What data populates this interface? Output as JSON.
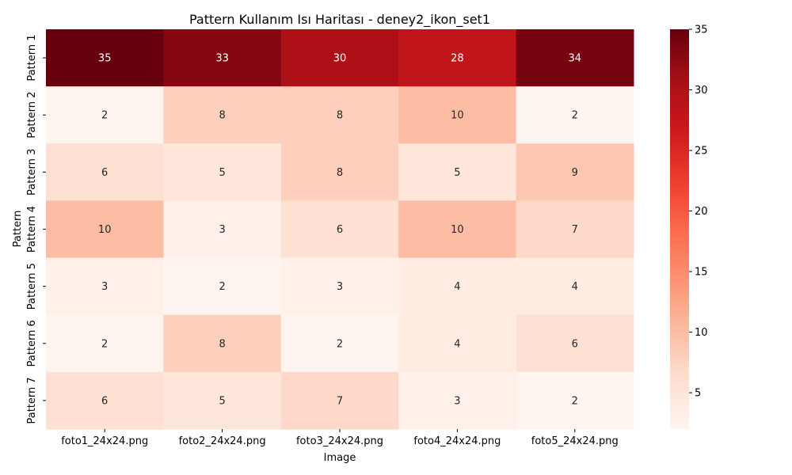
{
  "chart_data": {
    "type": "heatmap",
    "title": "Pattern Kullanım Isı Haritası - deney2_ikon_set1",
    "xlabel": "Image",
    "ylabel": "Pattern",
    "x_categories": [
      "foto1_24x24.png",
      "foto2_24x24.png",
      "foto3_24x24.png",
      "foto4_24x24.png",
      "foto5_24x24.png"
    ],
    "y_categories": [
      "Pattern 1",
      "Pattern 2",
      "Pattern 3",
      "Pattern 4",
      "Pattern 5",
      "Pattern 6",
      "Pattern 7"
    ],
    "values": [
      [
        35,
        33,
        30,
        28,
        34
      ],
      [
        2,
        8,
        8,
        10,
        2
      ],
      [
        6,
        5,
        8,
        5,
        9
      ],
      [
        10,
        3,
        6,
        10,
        7
      ],
      [
        3,
        2,
        3,
        4,
        4
      ],
      [
        2,
        8,
        2,
        4,
        6
      ],
      [
        6,
        5,
        7,
        3,
        2
      ]
    ],
    "colorscale": "Reds",
    "vmin": 2,
    "vmax": 35,
    "colorbar_ticks": [
      "5",
      "10",
      "15",
      "20",
      "25",
      "30",
      "35"
    ],
    "annotations": true
  }
}
